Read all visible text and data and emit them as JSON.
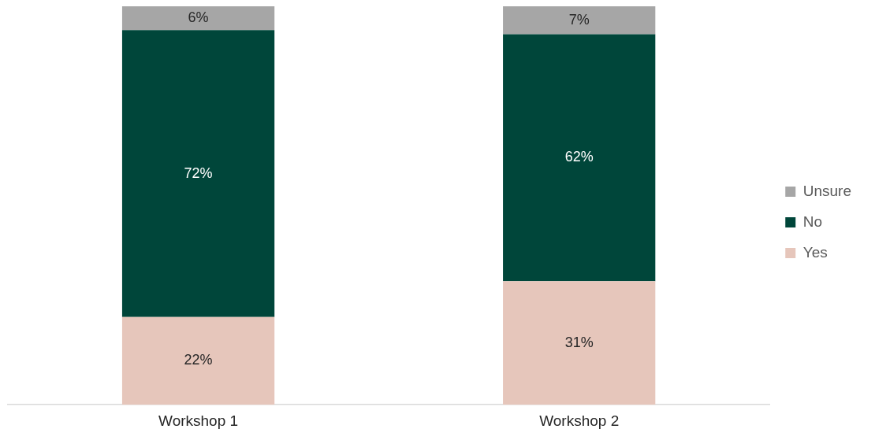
{
  "chart_data": {
    "type": "bar",
    "stacked": true,
    "categories": [
      "Workshop 1",
      "Workshop 2"
    ],
    "series": [
      {
        "name": "Yes",
        "color": "#e6c6bb",
        "values": [
          22,
          31
        ],
        "value_labels": [
          "22%",
          "31%"
        ]
      },
      {
        "name": "No",
        "color": "#00463a",
        "values": [
          72,
          62
        ],
        "value_labels": [
          "72%",
          "62%"
        ]
      },
      {
        "name": "Unsure",
        "color": "#a6a6a6",
        "values": [
          6,
          7
        ],
        "value_labels": [
          "6%",
          "7%"
        ]
      }
    ],
    "tick_labels": "x",
    "legend": "right",
    "grid": false
  }
}
